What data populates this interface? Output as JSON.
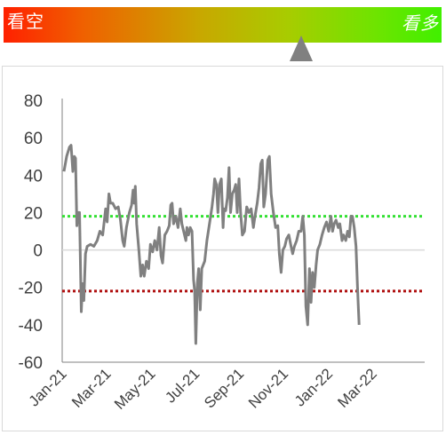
{
  "gauge": {
    "left_label": "看空",
    "right_label": "看多",
    "gradient_start": "#ff2000",
    "gradient_end": "#40f000",
    "pointer_color": "#808080",
    "pointer_level": 0.68
  },
  "chart_data": {
    "type": "line",
    "title": "",
    "xlabel": "",
    "ylabel": "",
    "ylim": [
      -60,
      80
    ],
    "yticks": [
      80,
      60,
      40,
      20,
      0,
      -20,
      -40,
      -60
    ],
    "x_tick_labels": [
      "Jan-21",
      "Mar-21",
      "May-21",
      "Jul-21",
      "Sep-21",
      "Nov-21",
      "Jan-22",
      "Mar-22"
    ],
    "x_tick_months": [
      0,
      2,
      4,
      6,
      8,
      10,
      12,
      14
    ],
    "x_range_months": [
      0,
      16.2
    ],
    "grid": false,
    "reference_lines": [
      {
        "value": 18,
        "color": "#33e033",
        "style": "dotted"
      },
      {
        "value": -22,
        "color": "#b01010",
        "style": "dotted"
      },
      {
        "value": 0,
        "color": "#d9d9d9",
        "style": "solid"
      }
    ],
    "series": [
      {
        "color": "#808080",
        "points": [
          [
            0.0,
            42
          ],
          [
            0.12,
            50
          ],
          [
            0.25,
            55
          ],
          [
            0.32,
            56
          ],
          [
            0.4,
            42
          ],
          [
            0.47,
            50
          ],
          [
            0.52,
            49
          ],
          [
            0.58,
            13
          ],
          [
            0.63,
            20
          ],
          [
            0.7,
            20
          ],
          [
            0.78,
            -33
          ],
          [
            0.84,
            -18
          ],
          [
            0.9,
            -27
          ],
          [
            0.97,
            -2
          ],
          [
            1.05,
            2
          ],
          [
            1.2,
            3
          ],
          [
            1.35,
            2
          ],
          [
            1.5,
            5
          ],
          [
            1.62,
            10
          ],
          [
            1.75,
            8
          ],
          [
            1.88,
            22
          ],
          [
            1.95,
            15
          ],
          [
            2.03,
            30
          ],
          [
            2.1,
            25
          ],
          [
            2.2,
            25
          ],
          [
            2.33,
            22
          ],
          [
            2.45,
            23
          ],
          [
            2.55,
            16
          ],
          [
            2.65,
            5
          ],
          [
            2.72,
            2
          ],
          [
            2.82,
            12
          ],
          [
            2.95,
            20
          ],
          [
            3.05,
            24
          ],
          [
            3.12,
            32
          ],
          [
            3.17,
            25
          ],
          [
            3.22,
            34
          ],
          [
            3.28,
            14
          ],
          [
            3.38,
            0
          ],
          [
            3.47,
            -14
          ],
          [
            3.55,
            -8
          ],
          [
            3.62,
            -14
          ],
          [
            3.72,
            -6
          ],
          [
            3.82,
            -10
          ],
          [
            3.9,
            3
          ],
          [
            4.0,
            -1
          ],
          [
            4.1,
            5
          ],
          [
            4.2,
            0
          ],
          [
            4.3,
            12
          ],
          [
            4.38,
            -3
          ],
          [
            4.45,
            -7
          ],
          [
            4.55,
            8
          ],
          [
            4.65,
            10
          ],
          [
            4.75,
            13
          ],
          [
            4.82,
            24
          ],
          [
            4.88,
            25
          ],
          [
            4.95,
            14
          ],
          [
            5.05,
            18
          ],
          [
            5.15,
            12
          ],
          [
            5.25,
            22
          ],
          [
            5.32,
            14
          ],
          [
            5.4,
            10
          ],
          [
            5.5,
            5
          ],
          [
            5.55,
            12
          ],
          [
            5.62,
            8
          ],
          [
            5.7,
            12
          ],
          [
            5.78,
            10
          ],
          [
            5.85,
            -16
          ],
          [
            5.9,
            -22
          ],
          [
            5.95,
            -50
          ],
          [
            6.02,
            -18
          ],
          [
            6.08,
            -10
          ],
          [
            6.15,
            -32
          ],
          [
            6.22,
            -10
          ],
          [
            6.35,
            -6
          ],
          [
            6.45,
            5
          ],
          [
            6.58,
            15
          ],
          [
            6.68,
            23
          ],
          [
            6.75,
            30
          ],
          [
            6.8,
            38
          ],
          [
            6.88,
            35
          ],
          [
            6.95,
            20
          ],
          [
            7.02,
            35
          ],
          [
            7.1,
            38
          ],
          [
            7.18,
            12
          ],
          [
            7.22,
            22
          ],
          [
            7.3,
            21
          ],
          [
            7.38,
            28
          ],
          [
            7.45,
            44
          ],
          [
            7.52,
            20
          ],
          [
            7.6,
            30
          ],
          [
            7.68,
            32
          ],
          [
            7.75,
            35
          ],
          [
            7.82,
            20
          ],
          [
            7.9,
            38
          ],
          [
            7.97,
            20
          ],
          [
            8.05,
            8
          ],
          [
            8.15,
            10
          ],
          [
            8.25,
            23
          ],
          [
            8.35,
            20
          ],
          [
            8.45,
            22
          ],
          [
            8.55,
            12
          ],
          [
            8.62,
            18
          ],
          [
            8.72,
            25
          ],
          [
            8.8,
            33
          ],
          [
            8.88,
            46
          ],
          [
            8.95,
            48
          ],
          [
            9.02,
            23
          ],
          [
            9.1,
            30
          ],
          [
            9.2,
            48
          ],
          [
            9.27,
            50
          ],
          [
            9.35,
            30
          ],
          [
            9.45,
            20
          ],
          [
            9.55,
            12
          ],
          [
            9.65,
            13
          ],
          [
            9.72,
            -2
          ],
          [
            9.8,
            -12
          ],
          [
            9.88,
            0
          ],
          [
            9.97,
            2
          ],
          [
            10.05,
            6
          ],
          [
            10.15,
            8
          ],
          [
            10.25,
            2
          ],
          [
            10.32,
            -2
          ],
          [
            10.4,
            2
          ],
          [
            10.5,
            5
          ],
          [
            10.6,
            10
          ],
          [
            10.7,
            10
          ],
          [
            10.78,
            18
          ],
          [
            10.85,
            8
          ],
          [
            10.92,
            -30
          ],
          [
            11.0,
            -40
          ],
          [
            11.08,
            -10
          ],
          [
            11.15,
            -28
          ],
          [
            11.22,
            -12
          ],
          [
            11.3,
            -20
          ],
          [
            11.38,
            -8
          ],
          [
            11.45,
            0
          ],
          [
            11.55,
            3
          ],
          [
            11.65,
            8
          ],
          [
            11.75,
            12
          ],
          [
            11.85,
            15
          ],
          [
            11.95,
            10
          ],
          [
            12.05,
            18
          ],
          [
            12.12,
            10
          ],
          [
            12.2,
            14
          ],
          [
            12.28,
            16
          ],
          [
            12.38,
            12
          ],
          [
            12.45,
            14
          ],
          [
            12.55,
            5
          ],
          [
            12.62,
            8
          ],
          [
            12.72,
            5
          ],
          [
            12.8,
            10
          ],
          [
            12.88,
            7
          ],
          [
            12.95,
            18
          ],
          [
            13.02,
            18
          ],
          [
            13.1,
            12
          ],
          [
            13.18,
            2
          ],
          [
            13.25,
            -20
          ],
          [
            13.32,
            -40
          ]
        ]
      }
    ]
  }
}
